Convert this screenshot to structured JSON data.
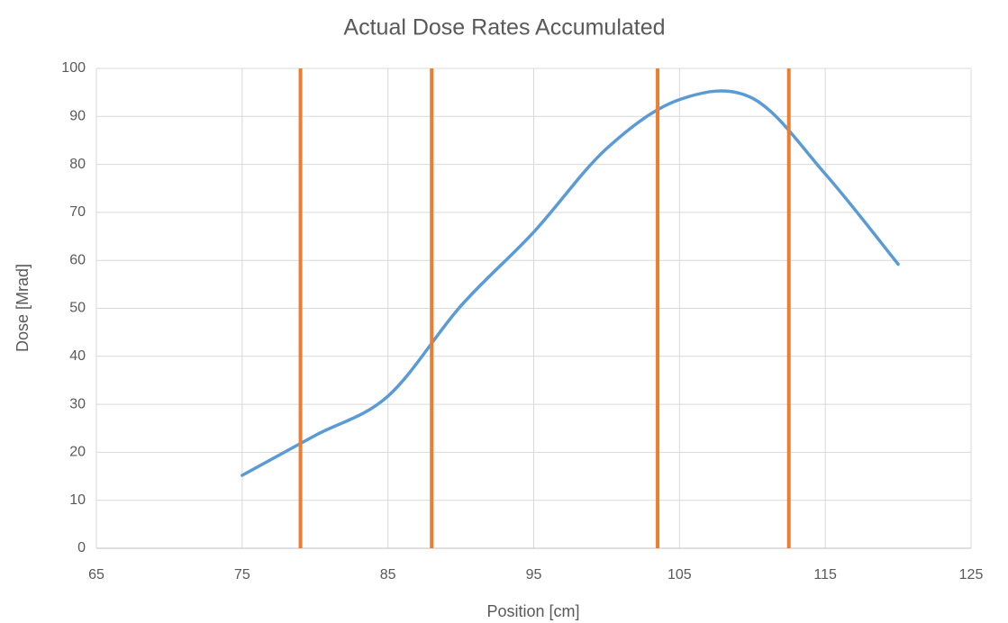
{
  "chart_data": {
    "type": "line",
    "title": "Actual Dose Rates Accumulated",
    "xlabel": "Position [cm]",
    "ylabel": "Dose [Mrad]",
    "x": [
      75,
      80,
      85,
      90,
      95,
      100,
      105,
      110,
      115,
      120
    ],
    "series": [
      {
        "color": "#5b9bd5",
        "values": [
          15.2,
          23.5,
          31.7,
          50.5,
          65.9,
          83.3,
          93.5,
          93.8,
          78,
          59.2
        ]
      }
    ],
    "vlines": {
      "color": "#ed7d31",
      "x": [
        79,
        88,
        103.5,
        112.5
      ]
    },
    "xlim": [
      65,
      125
    ],
    "xticks": [
      65,
      75,
      85,
      95,
      105,
      115,
      125
    ],
    "ylim": [
      0,
      100
    ],
    "yticks": [
      0,
      10,
      20,
      30,
      40,
      50,
      60,
      70,
      80,
      90,
      100
    ],
    "grid": true,
    "smooth": true
  }
}
